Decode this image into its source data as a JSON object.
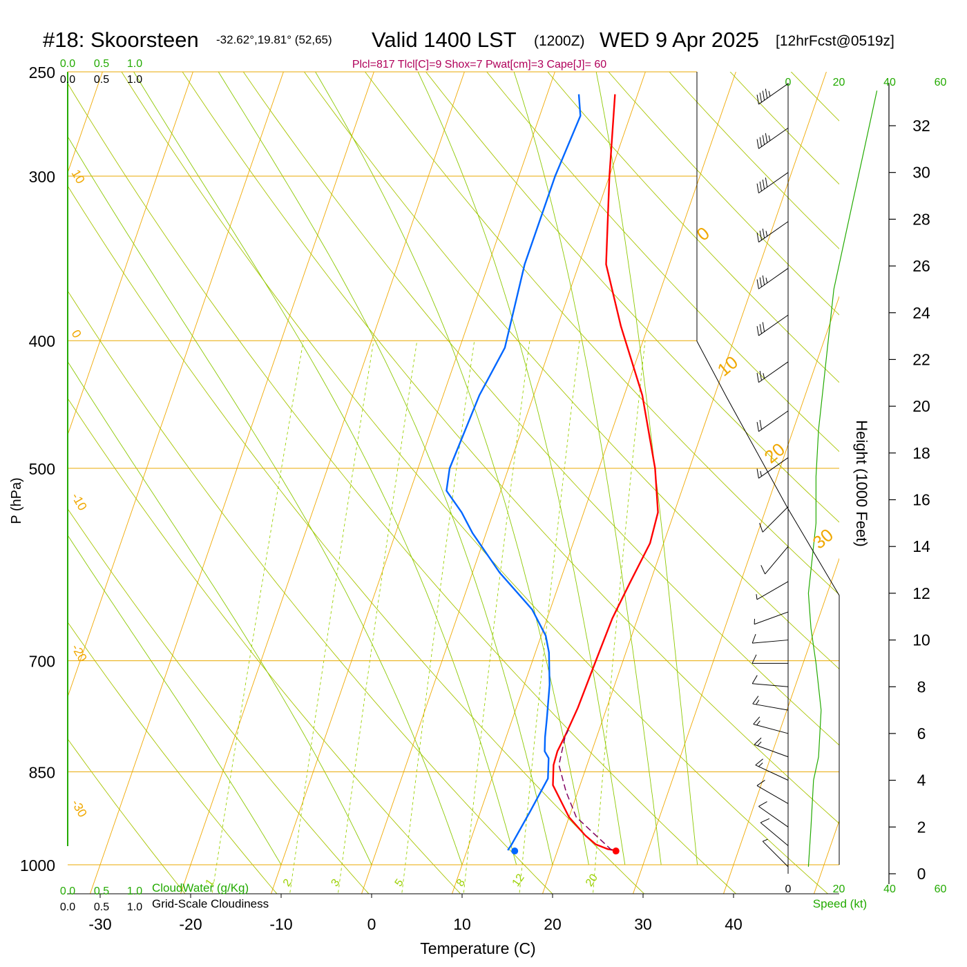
{
  "header": {
    "station": "#18: Skoorsteen",
    "coords": "-32.62°,19.81° (52,65)",
    "valid": "Valid 1400 LST",
    "utc": "(1200Z)",
    "date": "WED 9 Apr 2025",
    "forecast": "[12hrFcst@0519z]",
    "params": "Plcl=817 Tlcl[C]=9 Shox=7 Pwat[cm]=3 Cape[J]= 60"
  },
  "labels": {
    "cloudwater": "CloudWater (g/Kg)",
    "cloudiness": "Grid-Scale Cloudiness",
    "xlabel": "Temperature (C)",
    "ylabel": "P (hPa)",
    "height_label": "Height (1000 Feet)",
    "speed_label": "Speed (kt)"
  },
  "colors": {
    "isobar": "#e8a800",
    "isotherm": "#f0a800",
    "dry_adiabat": "#a8c400",
    "moist_adiabat": "#8cc800",
    "mixing_ratio": "#9ad000",
    "temperature": "#ff0000",
    "dewpoint": "#0066ff",
    "parcel": "#800060",
    "green_axis": "#22aa00",
    "params_text": "#b0005a"
  },
  "chart_data": [
    {
      "type": "line",
      "title": "Skew-T sounding",
      "xlabel": "Temperature (C)",
      "ylabel": "P (hPa)",
      "xlim": [
        -34,
        46
      ],
      "ylim": [
        1050,
        250
      ],
      "y_scale": "log",
      "x_ticks": [
        -30,
        -20,
        -10,
        0,
        10,
        20,
        30,
        40
      ],
      "y_ticks": [
        250,
        300,
        400,
        500,
        700,
        850,
        1000
      ],
      "cloud_scale_ticks": [
        "0.0",
        "0.5",
        "1.0"
      ],
      "isotherm_labels": [
        "10",
        "0",
        "-10",
        "-20",
        "-30",
        "0",
        "10",
        "20",
        "30"
      ],
      "mixing_ratio_labels": [
        "1",
        "2",
        "3",
        "5",
        "8",
        "12",
        "20"
      ],
      "series": [
        {
          "points": [
            [
              26.3,
              975
            ],
            [
              25.5,
              973
            ],
            [
              24.0,
              965
            ],
            [
              22.5,
              950
            ],
            [
              20.0,
              920
            ],
            [
              17.0,
              870
            ],
            [
              16.3,
              840
            ],
            [
              16.2,
              820
            ],
            [
              16.5,
              795
            ],
            [
              16.8,
              760
            ],
            [
              17.0,
              700
            ],
            [
              17.2,
              650
            ],
            [
              17.8,
              610
            ],
            [
              18.5,
              570
            ],
            [
              18.2,
              540
            ],
            [
              16.2,
              500
            ],
            [
              12.0,
              440
            ],
            [
              7.0,
              390
            ],
            [
              3.0,
              350
            ],
            [
              0.0,
              300
            ],
            [
              -2.5,
              260
            ]
          ]
        },
        {
          "points": [
            [
              14.5,
              975
            ],
            [
              14.7,
              965
            ],
            [
              15.5,
              910
            ],
            [
              16.2,
              860
            ],
            [
              15.5,
              830
            ],
            [
              14.8,
              820
            ],
            [
              14.3,
              800
            ],
            [
              13.8,
              775
            ],
            [
              12.8,
              730
            ],
            [
              11.5,
              690
            ],
            [
              10.5,
              670
            ],
            [
              8.0,
              640
            ],
            [
              3.0,
              600
            ],
            [
              -1.5,
              560
            ],
            [
              -3.5,
              540
            ],
            [
              -6.0,
              520
            ],
            [
              -6.5,
              500
            ],
            [
              -6.0,
              440
            ],
            [
              -5.0,
              405
            ],
            [
              -6.0,
              350
            ],
            [
              -6.0,
              300
            ],
            [
              -5.5,
              270
            ],
            [
              -6.5,
              260
            ]
          ]
        },
        {
          "points": [
            [
              26.0,
              975
            ],
            [
              20.8,
              920
            ],
            [
              18.7,
              880
            ],
            [
              16.9,
              840
            ],
            [
              16.7,
              820
            ],
            [
              16.5,
              800
            ],
            [
              16.6,
              790
            ]
          ]
        }
      ]
    },
    {
      "type": "line",
      "xlabel": "Speed (kt)",
      "ylabel": "Height (1000 Feet)",
      "xlim": [
        0,
        60
      ],
      "ylim": [
        0,
        33
      ],
      "x_ticks": [
        "0",
        "20",
        "40",
        "60"
      ],
      "y_ticks": [
        "0",
        "2",
        "4",
        "6",
        "8",
        "10",
        "12",
        "14",
        "16",
        "18",
        "20",
        "22",
        "24",
        "26",
        "28",
        "30",
        "32"
      ],
      "series": [
        {
          "points": [
            [
              8,
              0.3
            ],
            [
              9,
              2
            ],
            [
              10,
              4
            ],
            [
              12,
              5
            ],
            [
              13,
              7
            ],
            [
              11,
              9
            ],
            [
              9,
              10.5
            ],
            [
              8,
              12
            ],
            [
              9,
              13
            ],
            [
              11,
              15
            ],
            [
              11,
              17
            ],
            [
              12,
              19
            ],
            [
              14,
              21
            ],
            [
              16,
              23
            ],
            [
              18,
              25
            ],
            [
              22,
              27
            ],
            [
              26,
              29
            ],
            [
              30,
              31
            ],
            [
              35,
              33.5
            ]
          ]
        }
      ],
      "barbs": [
        {
          "h": 0.3,
          "kt": 8,
          "dir": 315
        },
        {
          "h": 1.2,
          "kt": 10,
          "dir": 310
        },
        {
          "h": 2.0,
          "kt": 12,
          "dir": 305
        },
        {
          "h": 3.0,
          "kt": 14,
          "dir": 300
        },
        {
          "h": 4.0,
          "kt": 15,
          "dir": 295
        },
        {
          "h": 5.0,
          "kt": 16,
          "dir": 290
        },
        {
          "h": 6.0,
          "kt": 15,
          "dir": 285
        },
        {
          "h": 7.0,
          "kt": 15,
          "dir": 280
        },
        {
          "h": 8.0,
          "kt": 14,
          "dir": 275
        },
        {
          "h": 9.0,
          "kt": 12,
          "dir": 270
        },
        {
          "h": 10.0,
          "kt": 10,
          "dir": 265
        },
        {
          "h": 11.2,
          "kt": 8,
          "dir": 250
        },
        {
          "h": 12.5,
          "kt": 6,
          "dir": 240
        },
        {
          "h": 14.0,
          "kt": 10,
          "dir": 220
        },
        {
          "h": 15.7,
          "kt": 10,
          "dir": 225
        },
        {
          "h": 17.8,
          "kt": 15,
          "dir": 235
        },
        {
          "h": 19.8,
          "kt": 20,
          "dir": 235
        },
        {
          "h": 21.9,
          "kt": 25,
          "dir": 235
        },
        {
          "h": 23.9,
          "kt": 30,
          "dir": 235
        },
        {
          "h": 25.9,
          "kt": 35,
          "dir": 235
        },
        {
          "h": 27.9,
          "kt": 35,
          "dir": 235
        },
        {
          "h": 30.0,
          "kt": 40,
          "dir": 235
        },
        {
          "h": 31.9,
          "kt": 45,
          "dir": 235
        },
        {
          "h": 33.8,
          "kt": 45,
          "dir": 235
        }
      ]
    }
  ]
}
